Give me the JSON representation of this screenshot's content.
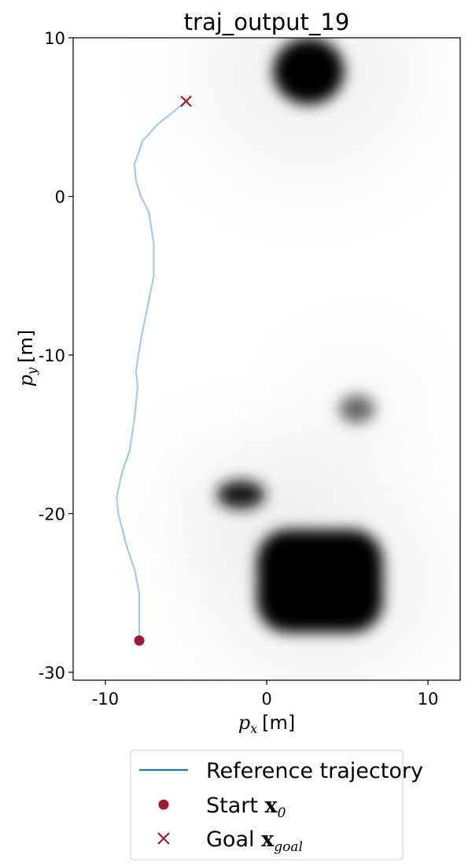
{
  "chart_data": {
    "type": "line",
    "title": "traj_output_19",
    "xlabel": {
      "var": "p",
      "sub": "x",
      "unit": "[m]"
    },
    "ylabel": {
      "var": "p",
      "sub": "y",
      "unit": "[m]"
    },
    "xlim": [
      -12,
      12
    ],
    "ylim": [
      -30.5,
      10
    ],
    "xticks": [
      -10,
      0,
      10
    ],
    "yticks": [
      10,
      0,
      -10,
      -20,
      -30
    ],
    "grid": false,
    "legend_position": "below",
    "colors": {
      "reference": "#1f77b4",
      "trajectory": "#a7c9ea",
      "start": "#9b1b30",
      "goal": "#9b1b30",
      "obstacle": "#000000"
    },
    "series": [
      {
        "name": "Reference trajectory",
        "x": [
          -7.9,
          -7.9,
          -7.9,
          -8.2,
          -8.7,
          -9.2,
          -9.3,
          -9.0,
          -8.5,
          -8.2,
          -8.0,
          -8.1,
          -7.8,
          -7.4,
          -7.0,
          -7.0,
          -7.3,
          -7.8,
          -8.1,
          -8.2,
          -7.7,
          -6.8,
          -5.0
        ],
        "y": [
          -28.0,
          -26.5,
          -25.0,
          -23.5,
          -22.0,
          -20.0,
          -19.0,
          -17.5,
          -16.0,
          -14.0,
          -12.0,
          -11.0,
          -9.0,
          -7.0,
          -5.0,
          -3.0,
          -1.0,
          0.0,
          1.0,
          2.0,
          3.5,
          4.5,
          6.0
        ]
      },
      {
        "name": "Start x_0",
        "x": [
          -7.9
        ],
        "y": [
          -28.0
        ]
      },
      {
        "name": "Goal x_goal",
        "x": [
          -5.0
        ],
        "y": [
          6.0
        ]
      }
    ],
    "obstacles": [
      {
        "shape": "ellipse",
        "cx": 2.6,
        "cy": 7.9,
        "rx": 2.2,
        "ry": 2.1,
        "intensity": 1.0
      },
      {
        "shape": "ellipse",
        "cx": 5.6,
        "cy": -13.4,
        "rx": 1.1,
        "ry": 0.9,
        "intensity": 0.6
      },
      {
        "shape": "ellipse",
        "cx": -1.6,
        "cy": -18.8,
        "rx": 1.5,
        "ry": 0.9,
        "intensity": 0.9
      },
      {
        "shape": "rect",
        "x0": -0.6,
        "x1": 7.2,
        "y0": -27.5,
        "y1": -21.0,
        "intensity": 1.0
      }
    ],
    "legend": [
      {
        "kind": "line",
        "text": "Reference trajectory",
        "math": ""
      },
      {
        "kind": "dot",
        "text": "Start ",
        "math": "x",
        "sub": "0"
      },
      {
        "kind": "cross",
        "text": "Goal ",
        "math": "x",
        "sub": "goal"
      }
    ]
  }
}
